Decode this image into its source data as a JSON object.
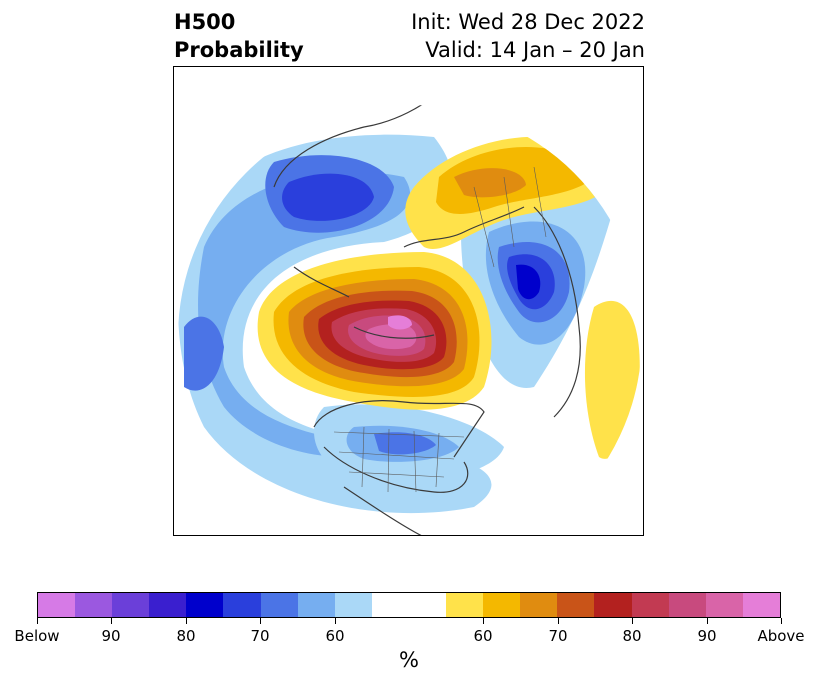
{
  "title": {
    "left_line1": "H500",
    "left_line2": "Probability",
    "right_line1": "Init: Wed 28 Dec 2022",
    "right_line2": "Valid: 14 Jan – 20 Jan"
  },
  "colorbar": {
    "colors": [
      "#d67ae6",
      "#9b58e0",
      "#6b3fd9",
      "#3a1fcf",
      "#0000cc",
      "#2a3fdc",
      "#4b74e6",
      "#76aef0",
      "#aad8f7",
      "#ffffff",
      "#ffffff",
      "#ffe24a",
      "#f4b800",
      "#e08c10",
      "#c95418",
      "#b3211f",
      "#c23a52",
      "#c84a7e",
      "#d964a8",
      "#e57ed8"
    ],
    "tick_labels": [
      "Below",
      "90",
      "80",
      "70",
      "60",
      "60",
      "70",
      "80",
      "90",
      "Above"
    ],
    "units": "%"
  }
}
